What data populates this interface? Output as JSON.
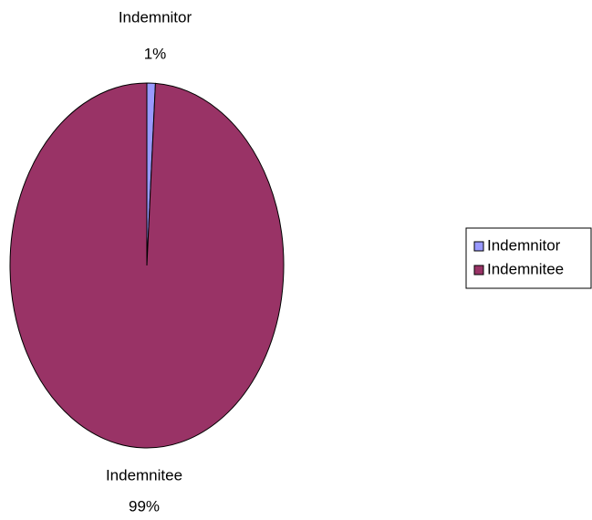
{
  "chart_data": {
    "type": "pie",
    "categories": [
      "Indemnitor",
      "Indemnitee"
    ],
    "values": [
      1,
      99
    ],
    "value_labels": [
      "1%",
      "99%"
    ],
    "colors": [
      "#9999ff",
      "#993366"
    ],
    "legend": "right"
  }
}
